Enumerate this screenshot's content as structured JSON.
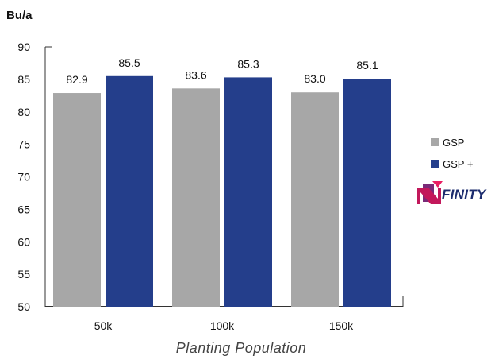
{
  "chart_data": {
    "type": "bar",
    "ylabel": "Bu/a",
    "xlabel": "Planting Population",
    "categories": [
      "50k",
      "100k",
      "150k"
    ],
    "ylim": [
      50,
      90
    ],
    "yticks": [
      50,
      55,
      60,
      65,
      70,
      75,
      80,
      85,
      90
    ],
    "grid": false,
    "legend_position": "right",
    "series": [
      {
        "name": "GSP",
        "color": "#a7a7a7",
        "values": [
          82.9,
          83.6,
          83.0
        ],
        "labels": [
          "82.9",
          "83.6",
          "83.0"
        ]
      },
      {
        "name": "GSP +",
        "color": "#243e8b",
        "values": [
          85.5,
          85.3,
          85.1
        ],
        "labels": [
          "85.5",
          "85.3",
          "85.1"
        ]
      }
    ]
  },
  "logo": {
    "text": "FINITY",
    "mark": "N"
  }
}
